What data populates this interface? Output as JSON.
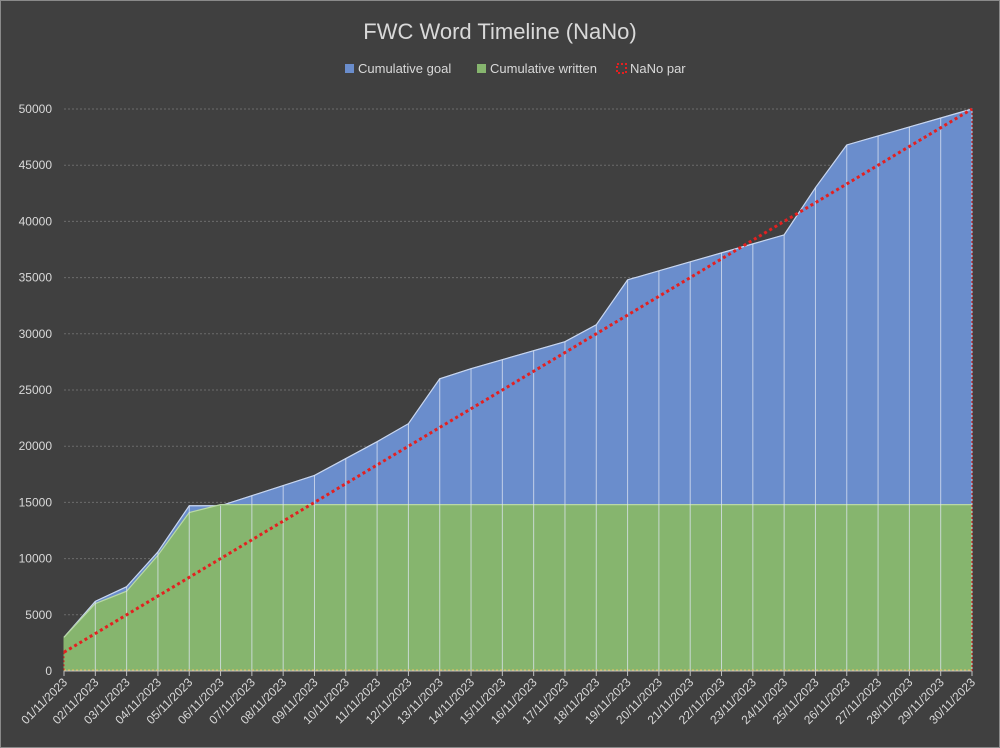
{
  "chart_data": {
    "type": "area",
    "title": "FWC Word Timeline (NaNo)",
    "xlabel": "",
    "ylabel": "",
    "ylim": [
      0,
      50000
    ],
    "y_ticks": [
      0,
      5000,
      10000,
      15000,
      20000,
      25000,
      30000,
      35000,
      40000,
      45000,
      50000
    ],
    "grid": true,
    "legend_position": "top",
    "categories": [
      "01/11/2023",
      "02/11/2023",
      "03/11/2023",
      "04/11/2023",
      "05/11/2023",
      "06/11/2023",
      "07/11/2023",
      "08/11/2023",
      "09/11/2023",
      "10/11/2023",
      "11/11/2023",
      "12/11/2023",
      "13/11/2023",
      "14/11/2023",
      "15/11/2023",
      "16/11/2023",
      "17/11/2023",
      "18/11/2023",
      "19/11/2023",
      "20/11/2023",
      "21/11/2023",
      "22/11/2023",
      "23/11/2023",
      "24/11/2023",
      "25/11/2023",
      "26/11/2023",
      "27/11/2023",
      "28/11/2023",
      "29/11/2023",
      "30/11/2023"
    ],
    "series": [
      {
        "name": "Cumulative goal",
        "kind": "area",
        "color": "#6a8dcc",
        "values": [
          3000,
          6200,
          7500,
          10600,
          14700,
          14700,
          15600,
          16500,
          17400,
          18900,
          20400,
          22000,
          26000,
          26900,
          27700,
          28500,
          29300,
          30800,
          34800,
          35600,
          36400,
          37200,
          38000,
          38800,
          43000,
          46800,
          47600,
          48400,
          49200,
          50000
        ]
      },
      {
        "name": "Cumulative written",
        "kind": "area",
        "color": "#86b56e",
        "values": [
          3000,
          6000,
          7100,
          10300,
          14100,
          14800,
          14800,
          14800,
          14800,
          14800,
          14800,
          14800,
          14800,
          14800,
          14800,
          14800,
          14800,
          14800,
          14800,
          14800,
          14800,
          14800,
          14800,
          14800,
          14800,
          14800,
          14800,
          14800,
          14800,
          14800
        ]
      },
      {
        "name": "NaNo par",
        "kind": "dotted-line",
        "color": "#e32020",
        "values": [
          1667,
          3333,
          5000,
          6667,
          8333,
          10000,
          11667,
          13333,
          15000,
          16667,
          18333,
          20000,
          21667,
          23333,
          25000,
          26667,
          28333,
          30000,
          31667,
          33333,
          35000,
          36667,
          38333,
          40000,
          41667,
          43333,
          45000,
          46667,
          48333,
          50000
        ]
      }
    ]
  }
}
